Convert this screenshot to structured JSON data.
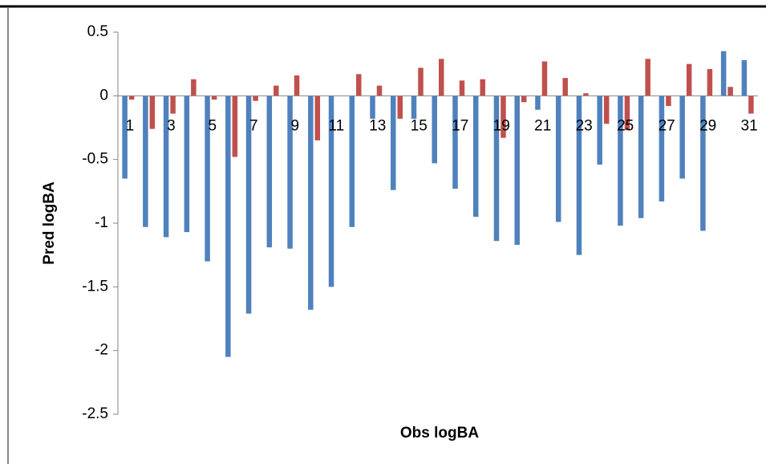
{
  "chart_data": {
    "type": "bar",
    "xlabel": "Obs logBA",
    "ylabel": "Pred logBA",
    "categories": [
      "1",
      null,
      "3",
      null,
      "5",
      null,
      "7",
      null,
      "9",
      null,
      "11",
      null,
      "13",
      null,
      "15",
      null,
      "17",
      null,
      "19",
      null,
      "21",
      null,
      "23",
      null,
      "25",
      null,
      "27",
      null,
      "29",
      null,
      "31"
    ],
    "series": [
      {
        "color": "#4f81bd",
        "values": [
          -0.65,
          -1.03,
          -1.11,
          -1.07,
          -1.3,
          -2.05,
          -1.71,
          -1.19,
          -1.2,
          -1.68,
          -1.5,
          -1.03,
          -0.18,
          -0.74,
          -0.18,
          -0.53,
          -0.73,
          -0.95,
          -1.14,
          -1.17,
          -0.11,
          -0.99,
          -1.25,
          -0.54,
          -1.02,
          -0.96,
          -0.83,
          -0.65,
          -1.06,
          0.35,
          0.28
        ]
      },
      {
        "color": "#c0504d",
        "values": [
          -0.03,
          -0.26,
          -0.14,
          0.13,
          -0.03,
          -0.48,
          -0.04,
          0.08,
          0.16,
          -0.35,
          0,
          0.17,
          0.08,
          -0.18,
          0.22,
          0.29,
          0.12,
          0.13,
          -0.33,
          -0.05,
          0.27,
          0.14,
          0.02,
          -0.22,
          -0.27,
          0.29,
          -0.08,
          0.25,
          0.21,
          0.07,
          -0.14
        ]
      }
    ],
    "ylim": [
      -2.5,
      0.5
    ],
    "yticks": [
      0.5,
      0,
      -0.5,
      -1,
      -1.5,
      -2,
      -2.5
    ],
    "grid": false
  }
}
